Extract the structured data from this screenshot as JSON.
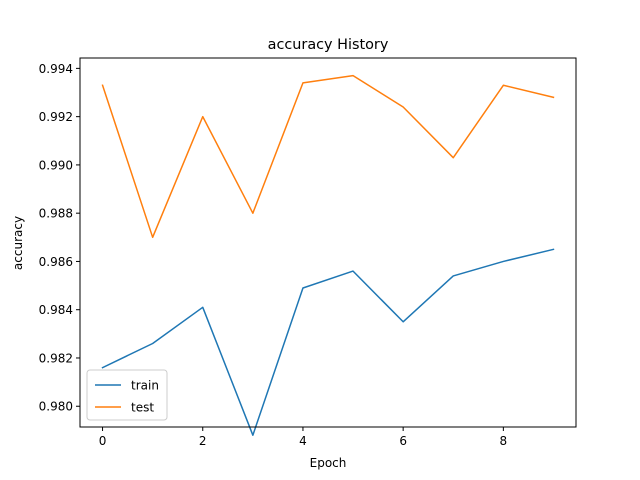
{
  "chart_data": {
    "type": "line",
    "title": "accuracy History",
    "xlabel": "Epoch",
    "ylabel": "accuracy",
    "x": [
      0,
      1,
      2,
      3,
      4,
      5,
      6,
      7,
      8,
      9
    ],
    "xlim": [
      -0.45,
      9.45
    ],
    "ylim": [
      0.97914,
      0.99443
    ],
    "xticks": [
      0,
      2,
      4,
      6,
      8
    ],
    "xtick_labels": [
      "0",
      "2",
      "4",
      "6",
      "8"
    ],
    "yticks": [
      0.98,
      0.982,
      0.984,
      0.986,
      0.988,
      0.99,
      0.992,
      0.994
    ],
    "ytick_labels": [
      "0.980",
      "0.982",
      "0.984",
      "0.986",
      "0.988",
      "0.990",
      "0.992",
      "0.994"
    ],
    "grid": false,
    "legend_position": "lower-left",
    "series": [
      {
        "name": "train",
        "color": "#1f77b4",
        "values": [
          0.9816,
          0.9826,
          0.9841,
          0.9788,
          0.9849,
          0.9856,
          0.9835,
          0.9854,
          0.986,
          0.9865
        ]
      },
      {
        "name": "test",
        "color": "#ff7f0e",
        "values": [
          0.9933,
          0.987,
          0.992,
          0.988,
          0.9934,
          0.9937,
          0.9924,
          0.9903,
          0.9933,
          0.9928
        ]
      }
    ]
  }
}
